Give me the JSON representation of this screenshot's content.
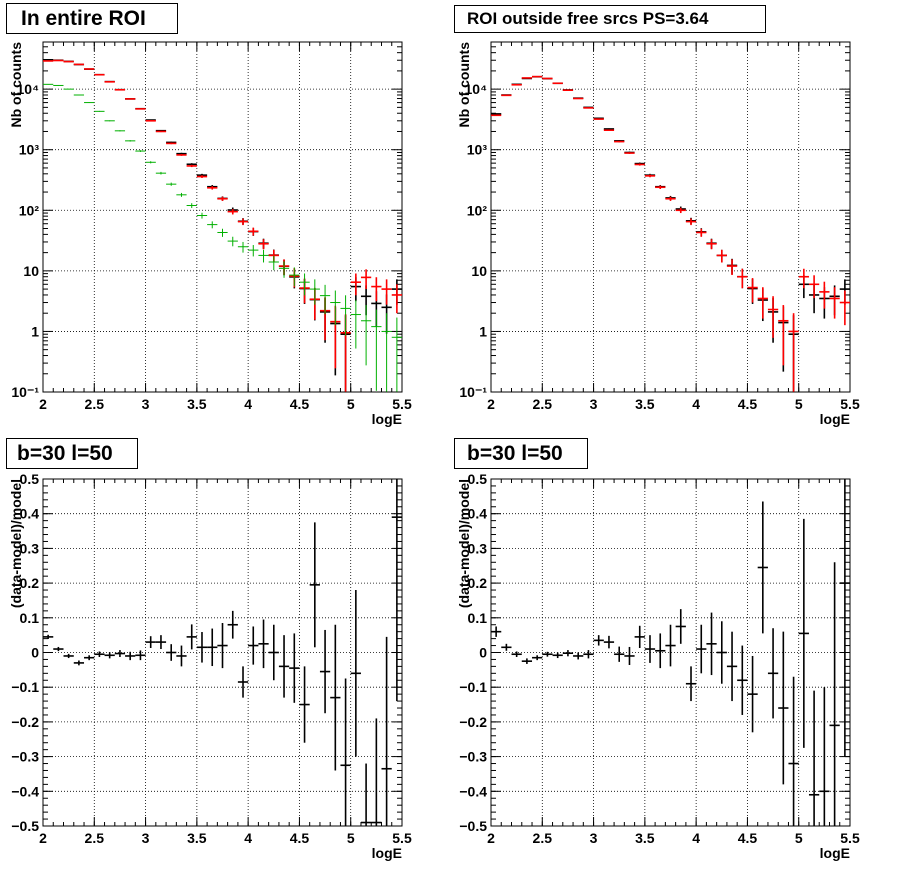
{
  "panels": [
    {
      "title": "In entire ROI"
    },
    {
      "title": "ROI outside free srcs PS=3.64"
    },
    {
      "title": "b=30 l=50"
    },
    {
      "title": "b=30 l=50"
    }
  ],
  "colors": {
    "data": "#000000",
    "model": "#ff0000",
    "total": "#0000ff",
    "component": "#00b000",
    "alt": "#ff9900",
    "grid": "#000000"
  },
  "chart_data": [
    {
      "type": "scatter",
      "title": "In entire ROI",
      "xlabel": "logE",
      "ylabel": "Nb of counts",
      "yscale": "log",
      "xlim": [
        2,
        5.5
      ],
      "ylim": [
        0.1,
        60000
      ],
      "xticks": [
        "2",
        "2.5",
        "3",
        "3.5",
        "4",
        "4.5",
        "5",
        "5.5"
      ],
      "yticks": [
        "10⁻¹",
        "1",
        "10",
        "10²",
        "10³",
        "10⁴"
      ],
      "grid": true,
      "series": [
        {
          "role": "data",
          "color": "#000000",
          "x": [
            2.05,
            2.15,
            2.25,
            2.35,
            2.45,
            2.55,
            2.65,
            2.75,
            2.85,
            2.95,
            3.05,
            3.15,
            3.25,
            3.35,
            3.45,
            3.55,
            3.65,
            3.75,
            3.85,
            3.95,
            4.05,
            4.15,
            4.25,
            4.35,
            4.45,
            4.55,
            4.65,
            4.75,
            4.85,
            4.95,
            5.05,
            5.15,
            5.25,
            5.35,
            5.45
          ],
          "y": [
            30500,
            30000,
            28700,
            25500,
            21400,
            17300,
            13300,
            9800,
            6900,
            4750,
            3090,
            2060,
            1320,
            860,
            575,
            380,
            245,
            157,
            101,
            66,
            44.5,
            28.6,
            18.2,
            11.9,
            7.95,
            5.1,
            3.35,
            2.1,
            1.35,
            0.9,
            5.5,
            3.8,
            2.9,
            2.5,
            5
          ]
        },
        {
          "role": "model",
          "color": "#ff0000",
          "x": [
            2.05,
            2.15,
            2.25,
            2.35,
            2.45,
            2.55,
            2.65,
            2.75,
            2.85,
            2.95,
            3.05,
            3.15,
            3.25,
            3.35,
            3.45,
            3.55,
            3.65,
            3.75,
            3.85,
            3.95,
            4.05,
            4.15,
            4.25,
            4.35,
            4.45,
            4.55,
            4.65,
            4.75,
            4.85,
            4.95,
            5.05,
            5.15,
            5.25,
            5.35,
            5.45
          ],
          "y": [
            29200,
            29700,
            28500,
            25600,
            21500,
            17300,
            13200,
            9750,
            6900,
            4720,
            3000,
            2000,
            1270,
            820,
            540,
            360,
            235,
            155,
            95,
            65,
            45,
            28,
            18,
            12,
            8.2,
            5.2,
            3.4,
            2.2,
            1.45,
            0.95,
            6.5,
            7.8,
            5.5,
            5,
            4
          ]
        },
        {
          "role": "component",
          "color": "#00b000",
          "x": [
            2.05,
            2.15,
            2.25,
            2.35,
            2.45,
            2.55,
            2.65,
            2.75,
            2.85,
            2.95,
            3.05,
            3.15,
            3.25,
            3.35,
            3.45,
            3.55,
            3.65,
            3.75,
            3.85,
            3.95,
            4.05,
            4.15,
            4.25,
            4.35,
            4.45,
            4.55,
            4.65,
            4.75,
            4.85,
            4.95,
            5.05,
            5.15,
            5.25,
            5.35,
            5.45
          ],
          "y": [
            12000,
            11500,
            10000,
            8000,
            6000,
            4300,
            3000,
            2050,
            1400,
            950,
            620,
            410,
            270,
            180,
            120,
            82,
            58,
            43,
            31,
            25,
            22,
            18,
            14,
            11,
            8.5,
            6.5,
            5,
            3.9,
            3,
            2.4,
            1.9,
            1.5,
            1.2,
            1,
            0.8
          ]
        }
      ]
    },
    {
      "type": "scatter",
      "title": "ROI outside free srcs PS=3.64",
      "xlabel": "logE",
      "ylabel": "Nb of counts",
      "yscale": "log",
      "xlim": [
        2,
        5.5
      ],
      "ylim": [
        0.1,
        60000
      ],
      "xticks": [
        "2",
        "2.5",
        "3",
        "3.5",
        "4",
        "4.5",
        "5",
        "5.5"
      ],
      "yticks": [
        "10⁻¹",
        "1",
        "10",
        "10²",
        "10³",
        "10⁴"
      ],
      "grid": true,
      "series": [
        {
          "role": "data",
          "color": "#000000",
          "x": [
            2.05,
            2.15,
            2.25,
            2.35,
            2.45,
            2.55,
            2.65,
            2.75,
            2.85,
            2.95,
            3.05,
            3.15,
            3.25,
            3.35,
            3.45,
            3.55,
            3.65,
            3.75,
            3.85,
            3.95,
            4.05,
            4.15,
            4.25,
            4.35,
            4.45,
            4.55,
            4.65,
            4.75,
            4.85,
            4.95,
            5.05,
            5.15,
            5.25,
            5.35,
            5.45
          ],
          "y": [
            3900,
            8000,
            12000,
            15000,
            16000,
            14900,
            12500,
            9700,
            7100,
            5000,
            3300,
            2200,
            1400,
            900,
            590,
            380,
            245,
            160,
            105,
            67,
            44,
            28.6,
            18,
            12.3,
            8,
            5.1,
            3.3,
            2.1,
            1.4,
            0.9,
            6,
            4,
            3.5,
            3.8,
            5
          ]
        },
        {
          "role": "model",
          "color": "#ff0000",
          "x": [
            2.05,
            2.15,
            2.25,
            2.35,
            2.45,
            2.55,
            2.65,
            2.75,
            2.85,
            2.95,
            3.05,
            3.15,
            3.25,
            3.35,
            3.45,
            3.55,
            3.65,
            3.75,
            3.85,
            3.95,
            4.05,
            4.15,
            4.25,
            4.35,
            4.45,
            4.55,
            4.65,
            4.75,
            4.85,
            4.95,
            5.05,
            5.15,
            5.25,
            5.35,
            5.45
          ],
          "y": [
            3700,
            7900,
            11800,
            15300,
            16100,
            15000,
            12500,
            9600,
            7000,
            4900,
            3200,
            2100,
            1360,
            880,
            570,
            370,
            240,
            155,
            100,
            65,
            43,
            28,
            18,
            12,
            8,
            5.3,
            3.5,
            2.3,
            1.5,
            1,
            8,
            6,
            4.5,
            3.5,
            3
          ]
        }
      ]
    },
    {
      "type": "scatter",
      "title": "b=30 l=50",
      "xlabel": "logE",
      "ylabel": "(data-model)/model",
      "xlim": [
        2,
        5.5
      ],
      "ylim": [
        -0.5,
        0.5
      ],
      "xticks": [
        "2",
        "2.5",
        "3",
        "3.5",
        "4",
        "4.5",
        "5",
        "5.5"
      ],
      "yticks": [
        "−0.5",
        "−0.4",
        "−0.3",
        "−0.2",
        "−0.1",
        "0",
        "0.1",
        "0.2",
        "0.3",
        "0.4",
        "0.5"
      ],
      "grid": true,
      "series": [
        {
          "role": "residual",
          "color": "#000000",
          "x": [
            2.05,
            2.15,
            2.25,
            2.35,
            2.45,
            2.55,
            2.65,
            2.75,
            2.85,
            2.95,
            3.05,
            3.15,
            3.25,
            3.35,
            3.45,
            3.55,
            3.65,
            3.75,
            3.85,
            3.95,
            4.05,
            4.15,
            4.25,
            4.35,
            4.45,
            4.55,
            4.65,
            4.75,
            4.85,
            4.95,
            5.05,
            5.15,
            5.25,
            5.35,
            5.45
          ],
          "y": [
            0.045,
            0.01,
            -0.01,
            -0.03,
            -0.015,
            -0.005,
            -0.008,
            -0.003,
            -0.01,
            -0.008,
            0.03,
            0.03,
            0.0,
            -0.01,
            0.045,
            0.015,
            0.015,
            0.02,
            0.08,
            -0.085,
            0.02,
            0.025,
            0.0,
            -0.04,
            -0.045,
            -0.15,
            0.195,
            -0.055,
            -0.13,
            -0.325,
            -0.06,
            -0.49,
            -0.49,
            -0.335,
            0.39
          ],
          "err": [
            0.006,
            0.006,
            0.006,
            0.007,
            0.007,
            0.008,
            0.009,
            0.01,
            0.012,
            0.014,
            0.017,
            0.02,
            0.024,
            0.03,
            0.036,
            0.044,
            0.054,
            0.065,
            0.04,
            0.045,
            0.055,
            0.07,
            0.08,
            0.09,
            0.1,
            0.11,
            0.18,
            0.12,
            0.21,
            0.25,
            0.24,
            0.17,
            0.3,
            0.38,
            0.53
          ]
        }
      ]
    },
    {
      "type": "scatter",
      "title": "b=30 l=50",
      "xlabel": "logE",
      "ylabel": "(data-model)/model",
      "xlim": [
        2,
        5.5
      ],
      "ylim": [
        -0.5,
        0.5
      ],
      "xticks": [
        "2",
        "2.5",
        "3",
        "3.5",
        "4",
        "4.5",
        "5",
        "5.5"
      ],
      "yticks": [
        "−0.5",
        "−0.4",
        "−0.3",
        "−0.2",
        "−0.1",
        "0",
        "0.1",
        "0.2",
        "0.3",
        "0.4",
        "0.5"
      ],
      "grid": true,
      "series": [
        {
          "role": "residual",
          "color": "#000000",
          "x": [
            2.05,
            2.15,
            2.25,
            2.35,
            2.45,
            2.55,
            2.65,
            2.75,
            2.85,
            2.95,
            3.05,
            3.15,
            3.25,
            3.35,
            3.45,
            3.55,
            3.65,
            3.75,
            3.85,
            3.95,
            4.05,
            4.15,
            4.25,
            4.35,
            4.45,
            4.55,
            4.65,
            4.75,
            4.85,
            4.95,
            5.05,
            5.15,
            5.25,
            5.35,
            5.45
          ],
          "y": [
            0.06,
            0.015,
            -0.005,
            -0.025,
            -0.015,
            -0.005,
            -0.008,
            -0.002,
            -0.01,
            -0.005,
            0.035,
            0.03,
            -0.005,
            -0.01,
            0.045,
            0.01,
            0.005,
            0.02,
            0.075,
            -0.09,
            0.01,
            0.025,
            0.0,
            -0.04,
            -0.08,
            -0.12,
            0.245,
            -0.06,
            -0.16,
            -0.32,
            0.055,
            -0.41,
            -0.4,
            -0.21,
            0.2
          ],
          "err": [
            0.015,
            0.01,
            0.008,
            0.008,
            0.007,
            0.007,
            0.008,
            0.009,
            0.01,
            0.012,
            0.015,
            0.018,
            0.022,
            0.026,
            0.032,
            0.04,
            0.05,
            0.06,
            0.05,
            0.05,
            0.07,
            0.09,
            0.09,
            0.1,
            0.1,
            0.11,
            0.19,
            0.13,
            0.22,
            0.25,
            0.33,
            0.3,
            0.3,
            0.47,
            0.5
          ]
        }
      ]
    }
  ]
}
